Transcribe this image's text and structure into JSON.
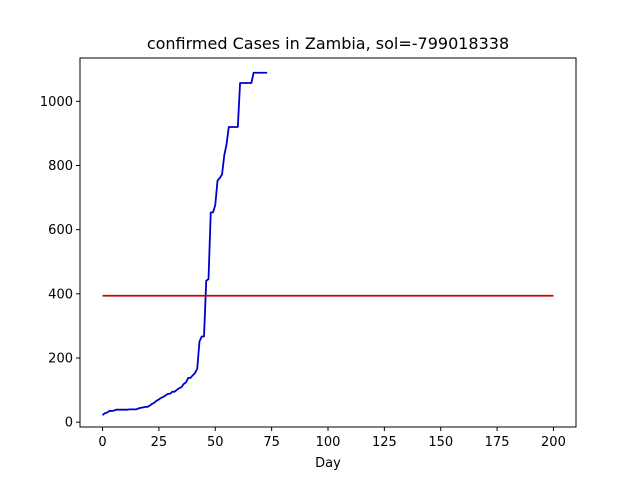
{
  "chart_data": {
    "type": "line",
    "title": "confirmed Cases in Zambia, sol=-799018338",
    "xlabel": "Day",
    "ylabel": "",
    "xlim": [
      -10,
      210
    ],
    "ylim": [
      -15,
      1135
    ],
    "x_ticks": [
      0,
      25,
      50,
      75,
      100,
      125,
      150,
      175,
      200
    ],
    "y_ticks": [
      0,
      200,
      400,
      600,
      800,
      1000
    ],
    "grid": false,
    "series": [
      {
        "color": "#0000cc",
        "x": [
          0,
          1,
          2,
          3,
          4,
          5,
          6,
          7,
          8,
          9,
          10,
          11,
          12,
          13,
          14,
          15,
          16,
          17,
          18,
          19,
          20,
          21,
          22,
          23,
          24,
          25,
          26,
          27,
          28,
          29,
          30,
          31,
          32,
          33,
          34,
          35,
          36,
          37,
          38,
          39,
          40,
          41,
          42,
          43,
          44,
          45,
          46,
          47,
          48,
          49,
          50,
          51,
          52,
          53,
          54,
          55,
          56,
          57,
          58,
          59,
          60,
          61,
          62,
          63,
          64,
          65,
          66,
          67,
          68,
          69,
          70,
          71,
          72,
          73
        ],
        "y": [
          22,
          28,
          30,
          35,
          35,
          36,
          39,
          39,
          39,
          39,
          39,
          39,
          40,
          40,
          40,
          40,
          43,
          45,
          46,
          48,
          48,
          52,
          57,
          61,
          67,
          71,
          76,
          79,
          84,
          88,
          89,
          95,
          95,
          101,
          106,
          109,
          119,
          124,
          138,
          138,
          146,
          153,
          167,
          252,
          267,
          267,
          441,
          446,
          654,
          654,
          677,
          753,
          761,
          772,
          832,
          866,
          920,
          920,
          920,
          920,
          920,
          1057,
          1057,
          1057,
          1057,
          1057,
          1057,
          1089,
          1089,
          1089,
          1089,
          1089,
          1089,
          1089
        ]
      },
      {
        "color": "#cc0000",
        "x": [
          0,
          200
        ],
        "y": [
          394,
          394
        ]
      }
    ]
  }
}
